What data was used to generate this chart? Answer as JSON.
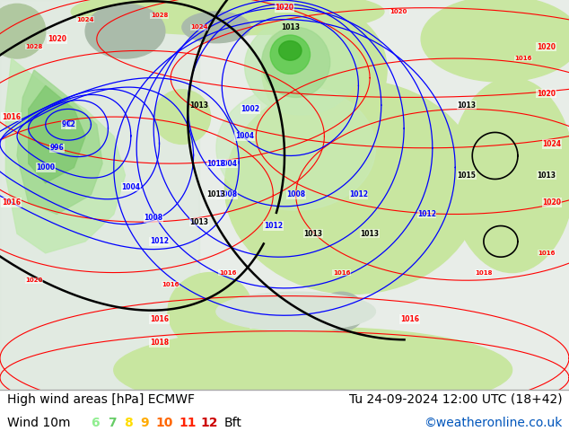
{
  "title_left": "High wind areas [hPa] ECMWF",
  "title_right": "Tu 24-09-2024 12:00 UTC (18+42)",
  "legend_label": "Wind 10m",
  "legend_numbers": [
    "6",
    "7",
    "8",
    "9",
    "10",
    "11",
    "12"
  ],
  "legend_colors": [
    "#90ee90",
    "#66cc66",
    "#ffdd00",
    "#ffaa00",
    "#ff6600",
    "#ff2200",
    "#cc0000"
  ],
  "legend_unit": "Bft",
  "watermark": "©weatheronline.co.uk",
  "watermark_color": "#0055bb",
  "land_color": "#c8e6a0",
  "sea_color": "#e8f0e8",
  "low_wind_color1": "#c0e8c0",
  "low_wind_color2": "#a0d8a0",
  "low_wind_color3": "#80c880",
  "low_wind_color4": "#40b840",
  "low_wind_color5": "#209820",
  "title_fontsize": 10,
  "legend_fontsize": 10,
  "bg_color": "#ffffff"
}
